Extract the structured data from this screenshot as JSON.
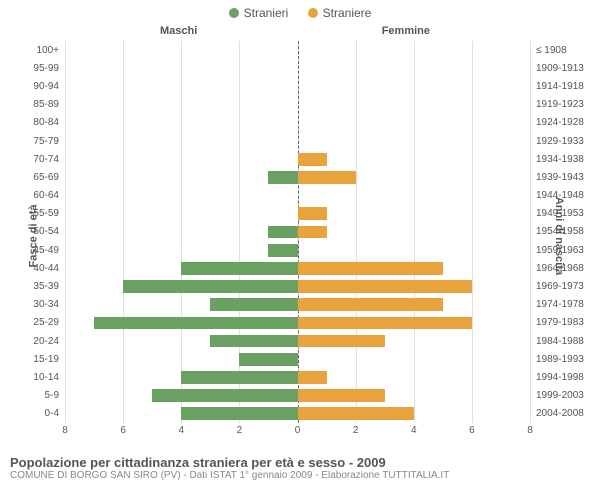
{
  "legend": {
    "male": "Stranieri",
    "female": "Straniere"
  },
  "colors": {
    "male": "#6aa061",
    "female": "#e8a33d",
    "grid": "#e0e0e0",
    "center": "#666666",
    "text": "#555555",
    "background": "#ffffff"
  },
  "headers": {
    "left": "Maschi",
    "right": "Femmine"
  },
  "axis": {
    "left_title": "Fasce di età",
    "right_title": "Anni di nascita",
    "xmax": 8,
    "xticks": [
      8,
      6,
      4,
      2,
      0,
      2,
      4,
      6,
      8
    ]
  },
  "footer": {
    "title": "Popolazione per cittadinanza straniera per età e sesso - 2009",
    "sub": "COMUNE DI BORGO SAN SIRO (PV) - Dati ISTAT 1° gennaio 2009 - Elaborazione TUTTITALIA.IT"
  },
  "chart": {
    "type": "population-pyramid",
    "rows": [
      {
        "age": "100+",
        "birth": "≤ 1908",
        "m": 0,
        "f": 0
      },
      {
        "age": "95-99",
        "birth": "1909-1913",
        "m": 0,
        "f": 0
      },
      {
        "age": "90-94",
        "birth": "1914-1918",
        "m": 0,
        "f": 0
      },
      {
        "age": "85-89",
        "birth": "1919-1923",
        "m": 0,
        "f": 0
      },
      {
        "age": "80-84",
        "birth": "1924-1928",
        "m": 0,
        "f": 0
      },
      {
        "age": "75-79",
        "birth": "1929-1933",
        "m": 0,
        "f": 0
      },
      {
        "age": "70-74",
        "birth": "1934-1938",
        "m": 0,
        "f": 1
      },
      {
        "age": "65-69",
        "birth": "1939-1943",
        "m": 1,
        "f": 2
      },
      {
        "age": "60-64",
        "birth": "1944-1948",
        "m": 0,
        "f": 0
      },
      {
        "age": "55-59",
        "birth": "1949-1953",
        "m": 0,
        "f": 1
      },
      {
        "age": "50-54",
        "birth": "1954-1958",
        "m": 1,
        "f": 1
      },
      {
        "age": "45-49",
        "birth": "1959-1963",
        "m": 1,
        "f": 0
      },
      {
        "age": "40-44",
        "birth": "1964-1968",
        "m": 4,
        "f": 5
      },
      {
        "age": "35-39",
        "birth": "1969-1973",
        "m": 6,
        "f": 6
      },
      {
        "age": "30-34",
        "birth": "1974-1978",
        "m": 3,
        "f": 5
      },
      {
        "age": "25-29",
        "birth": "1979-1983",
        "m": 7,
        "f": 6
      },
      {
        "age": "20-24",
        "birth": "1984-1988",
        "m": 3,
        "f": 3
      },
      {
        "age": "15-19",
        "birth": "1989-1993",
        "m": 2,
        "f": 0
      },
      {
        "age": "10-14",
        "birth": "1994-1998",
        "m": 4,
        "f": 1
      },
      {
        "age": "5-9",
        "birth": "1999-2003",
        "m": 5,
        "f": 3
      },
      {
        "age": "0-4",
        "birth": "2004-2008",
        "m": 4,
        "f": 4
      }
    ]
  }
}
